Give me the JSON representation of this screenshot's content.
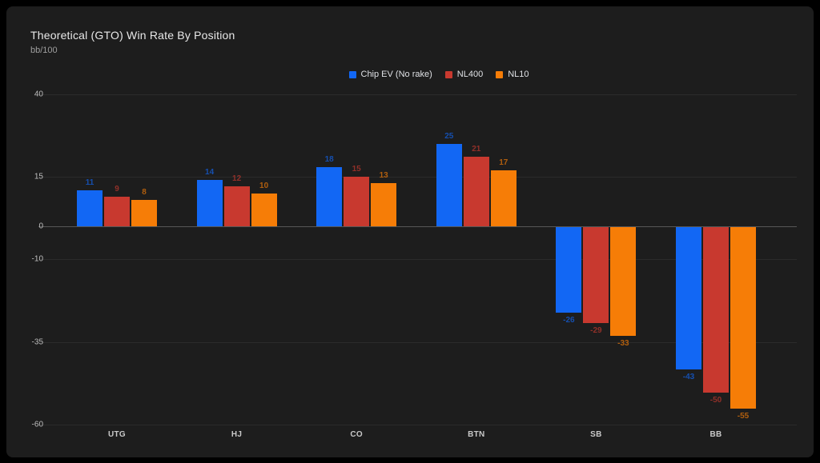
{
  "title": "Theoretical (GTO) Win Rate By Position",
  "subtitle": "bb/100",
  "chart_data": {
    "type": "bar",
    "title": "Theoretical (GTO) Win Rate By Position",
    "ylabel": "bb/100",
    "xlabel": "",
    "categories": [
      "UTG",
      "HJ",
      "CO",
      "BTN",
      "SB",
      "BB"
    ],
    "series": [
      {
        "name": "Chip EV (No rake)",
        "color": "#1267F4",
        "values": [
          11,
          14,
          18,
          25,
          -26,
          -43
        ]
      },
      {
        "name": "NL400",
        "color": "#C8392F",
        "values": [
          9,
          12,
          15,
          21,
          -29,
          -50
        ]
      },
      {
        "name": "NL10",
        "color": "#F67D07",
        "values": [
          8,
          10,
          13,
          17,
          -33,
          -55
        ]
      }
    ],
    "y_tick_labels": [
      "40",
      "15",
      "0",
      "-10",
      "-35",
      "-60"
    ],
    "y_ticks": [
      40,
      15,
      0,
      -10,
      -35,
      -60
    ],
    "gridline_values": [
      40,
      15,
      -10,
      -35,
      -60
    ],
    "ylim": [
      -60,
      40
    ],
    "grid": true,
    "legend_position": "top-center",
    "data_labels": true
  },
  "colors": {
    "frame_background": "#000000",
    "card_background": "#1d1d1d",
    "gridline": "#2b2b2b",
    "zero_line": "#565656",
    "title_text": "#e8e8e8",
    "subtitle_text": "#9e9e9e",
    "axis_text": "#bdbdbd",
    "category_text": "#c9c9c9"
  }
}
